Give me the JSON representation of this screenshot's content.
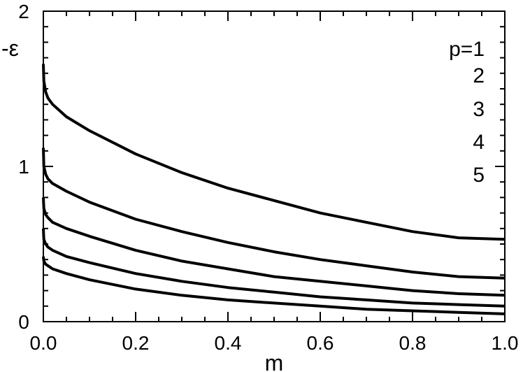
{
  "chart_data": {
    "type": "line",
    "title": "",
    "xlabel": "m",
    "ylabel": "-ε",
    "xlim": [
      0.0,
      1.0
    ],
    "ylim": [
      0,
      2
    ],
    "xticks": [
      "0.0",
      "0.2",
      "0.4",
      "0.6",
      "0.8",
      "1.0"
    ],
    "yticks": [
      "0",
      "1",
      "2"
    ],
    "grid": false,
    "legend_position": "top-right",
    "legend_entries": [
      "p=1",
      "2",
      "3",
      "4",
      "5"
    ],
    "series": [
      {
        "name": "p=1",
        "x": [
          0.0,
          0.001,
          0.005,
          0.01,
          0.02,
          0.05,
          0.1,
          0.2,
          0.3,
          0.4,
          0.5,
          0.6,
          0.7,
          0.8,
          0.9,
          1.0
        ],
        "y": [
          1.66,
          1.55,
          1.48,
          1.44,
          1.4,
          1.32,
          1.23,
          1.08,
          0.96,
          0.86,
          0.78,
          0.7,
          0.64,
          0.58,
          0.54,
          0.53
        ]
      },
      {
        "name": "2",
        "x": [
          0.0,
          0.001,
          0.005,
          0.01,
          0.02,
          0.05,
          0.1,
          0.2,
          0.3,
          0.4,
          0.5,
          0.6,
          0.7,
          0.8,
          0.9,
          1.0
        ],
        "y": [
          1.12,
          1.0,
          0.95,
          0.92,
          0.89,
          0.84,
          0.77,
          0.66,
          0.58,
          0.51,
          0.45,
          0.4,
          0.36,
          0.32,
          0.29,
          0.28
        ]
      },
      {
        "name": "3",
        "x": [
          0.0,
          0.001,
          0.005,
          0.01,
          0.02,
          0.05,
          0.1,
          0.2,
          0.3,
          0.4,
          0.5,
          0.6,
          0.7,
          0.8,
          0.9,
          1.0
        ],
        "y": [
          0.8,
          0.73,
          0.69,
          0.67,
          0.64,
          0.6,
          0.55,
          0.46,
          0.39,
          0.34,
          0.29,
          0.26,
          0.23,
          0.2,
          0.18,
          0.17
        ]
      },
      {
        "name": "4",
        "x": [
          0.0,
          0.001,
          0.005,
          0.01,
          0.02,
          0.05,
          0.1,
          0.2,
          0.3,
          0.4,
          0.5,
          0.6,
          0.7,
          0.8,
          0.9,
          1.0
        ],
        "y": [
          0.6,
          0.53,
          0.5,
          0.48,
          0.46,
          0.42,
          0.38,
          0.31,
          0.26,
          0.22,
          0.19,
          0.16,
          0.14,
          0.12,
          0.11,
          0.1
        ]
      },
      {
        "name": "5",
        "x": [
          0.0,
          0.001,
          0.005,
          0.01,
          0.02,
          0.05,
          0.1,
          0.2,
          0.3,
          0.4,
          0.5,
          0.6,
          0.7,
          0.8,
          0.9,
          1.0
        ],
        "y": [
          0.42,
          0.39,
          0.37,
          0.36,
          0.34,
          0.31,
          0.27,
          0.21,
          0.17,
          0.14,
          0.12,
          0.1,
          0.08,
          0.07,
          0.06,
          0.05
        ]
      }
    ]
  },
  "colors": {
    "line": "#000000",
    "axis": "#000000",
    "background": "#ffffff"
  }
}
